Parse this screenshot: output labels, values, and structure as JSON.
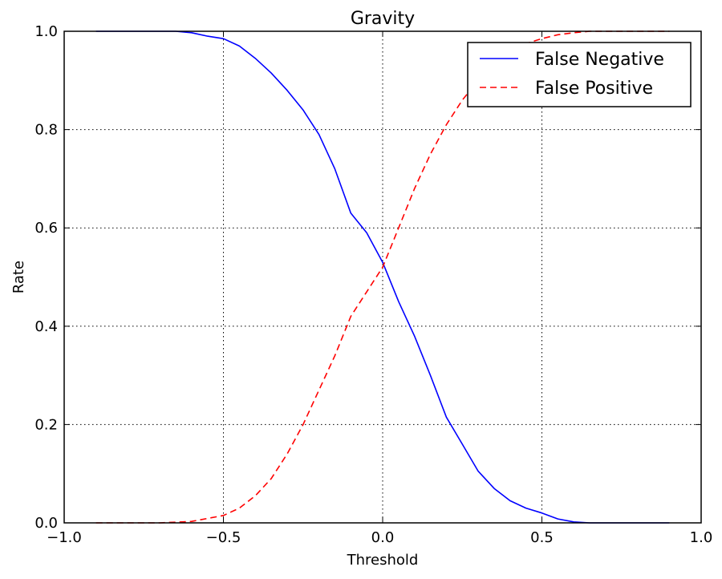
{
  "chart_data": {
    "type": "line",
    "title": "Gravity",
    "xlabel": "Threshold",
    "ylabel": "Rate",
    "xlim": [
      -1.0,
      1.0
    ],
    "ylim": [
      0.0,
      1.0
    ],
    "xticks": [
      "−1.0",
      "−0.5",
      "0.0",
      "0.5",
      "1.0"
    ],
    "yticks": [
      "0.0",
      "0.2",
      "0.4",
      "0.6",
      "0.8",
      "1.0"
    ],
    "xtick_values": [
      -1.0,
      -0.5,
      0.0,
      0.5,
      1.0
    ],
    "ytick_values": [
      0.0,
      0.2,
      0.4,
      0.6,
      0.8,
      1.0
    ],
    "grid": true,
    "legend_position": "top-right",
    "series": [
      {
        "name": "False Negative",
        "color": "#0000ff",
        "style": "solid",
        "x": [
          -0.9,
          -0.7,
          -0.65,
          -0.6,
          -0.55,
          -0.5,
          -0.45,
          -0.4,
          -0.35,
          -0.3,
          -0.25,
          -0.2,
          -0.15,
          -0.1,
          -0.05,
          0.0,
          0.05,
          0.1,
          0.15,
          0.2,
          0.25,
          0.3,
          0.35,
          0.4,
          0.45,
          0.5,
          0.55,
          0.6,
          0.65,
          0.7,
          0.8,
          0.9
        ],
        "y": [
          1.0,
          1.0,
          1.0,
          0.997,
          0.99,
          0.985,
          0.97,
          0.945,
          0.915,
          0.88,
          0.84,
          0.79,
          0.72,
          0.63,
          0.59,
          0.53,
          0.45,
          0.38,
          0.3,
          0.215,
          0.16,
          0.105,
          0.07,
          0.045,
          0.03,
          0.02,
          0.008,
          0.002,
          0.0,
          0.0,
          0.0,
          0.0
        ]
      },
      {
        "name": "False Positive",
        "color": "#ff0000",
        "style": "dashed",
        "x": [
          -0.9,
          -0.8,
          -0.7,
          -0.6,
          -0.5,
          -0.45,
          -0.4,
          -0.35,
          -0.3,
          -0.25,
          -0.2,
          -0.15,
          -0.1,
          -0.05,
          0.0,
          0.05,
          0.1,
          0.15,
          0.2,
          0.25,
          0.3,
          0.35,
          0.4,
          0.45,
          0.5,
          0.55,
          0.6,
          0.65,
          0.7,
          0.8,
          0.9
        ],
        "y": [
          0.0,
          0.0,
          0.0,
          0.003,
          0.015,
          0.03,
          0.055,
          0.09,
          0.14,
          0.2,
          0.27,
          0.34,
          0.42,
          0.47,
          0.52,
          0.6,
          0.68,
          0.75,
          0.81,
          0.86,
          0.9,
          0.935,
          0.96,
          0.975,
          0.985,
          0.993,
          0.997,
          1.0,
          1.0,
          1.0,
          1.0
        ]
      }
    ]
  }
}
